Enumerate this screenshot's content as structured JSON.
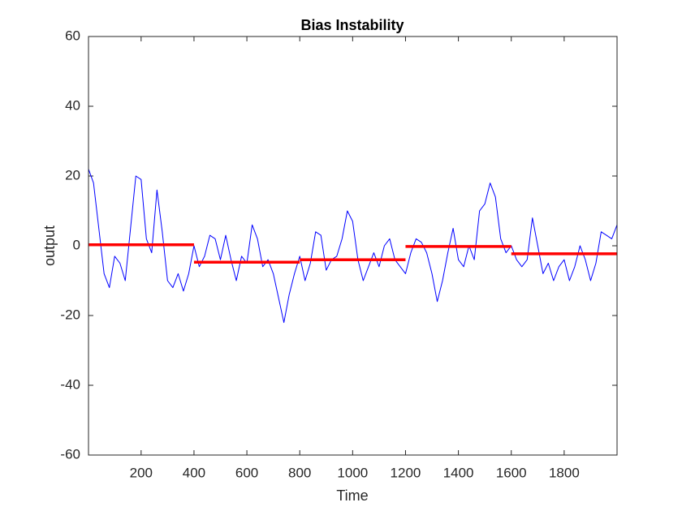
{
  "chart_data": {
    "type": "line",
    "title": "Bias Instability",
    "x_label": "Time",
    "y_label": "output",
    "xlim": [
      1,
      2000
    ],
    "ylim": [
      -60,
      60
    ],
    "xticks": [
      200,
      400,
      600,
      800,
      1000,
      1200,
      1400,
      1600,
      1800
    ],
    "yticks": [
      -60,
      -40,
      -20,
      0,
      20,
      40,
      60
    ],
    "grid": false,
    "series": [
      {
        "color": "#0000ff",
        "width": 1,
        "x": [
          1,
          20,
          40,
          60,
          80,
          100,
          120,
          140,
          160,
          180,
          200,
          220,
          240,
          260,
          280,
          300,
          320,
          340,
          360,
          380,
          400,
          420,
          440,
          460,
          480,
          500,
          520,
          540,
          560,
          580,
          600,
          620,
          640,
          660,
          680,
          700,
          720,
          740,
          760,
          780,
          800,
          820,
          840,
          860,
          880,
          900,
          920,
          940,
          960,
          980,
          1000,
          1020,
          1040,
          1060,
          1080,
          1100,
          1120,
          1140,
          1160,
          1180,
          1200,
          1220,
          1240,
          1260,
          1280,
          1300,
          1320,
          1340,
          1360,
          1380,
          1400,
          1420,
          1440,
          1460,
          1480,
          1500,
          1520,
          1540,
          1560,
          1580,
          1600,
          1620,
          1640,
          1660,
          1680,
          1700,
          1720,
          1740,
          1760,
          1780,
          1800,
          1820,
          1840,
          1860,
          1880,
          1900,
          1920,
          1940,
          1960,
          1980,
          2000
        ],
        "values": [
          22,
          18,
          5,
          -8,
          -12,
          -3,
          -5,
          -10,
          5,
          20,
          19,
          2,
          -2,
          16,
          4,
          -10,
          -12,
          -8,
          -13,
          -8,
          0,
          -6,
          -3,
          3,
          2,
          -4,
          3,
          -4,
          -10,
          -3,
          -5,
          6,
          2,
          -6,
          -4,
          -8,
          -15,
          -22,
          -14,
          -8,
          -3,
          -10,
          -5,
          4,
          3,
          -7,
          -4,
          -3,
          2,
          10,
          7,
          -4,
          -10,
          -6,
          -2,
          -6,
          0,
          2,
          -4,
          -6,
          -8,
          -2,
          2,
          1,
          -2,
          -8,
          -16,
          -10,
          -2,
          5,
          -4,
          -6,
          0,
          -4,
          10,
          12,
          18,
          14,
          2,
          -2,
          0,
          -4,
          -6,
          -4,
          8,
          0,
          -8,
          -5,
          -10,
          -6,
          -4,
          -10,
          -6,
          0,
          -4,
          -10,
          -5,
          4,
          3,
          2,
          6
        ]
      },
      {
        "color": "#ff0000",
        "width": 3.5,
        "x": [
          1,
          400
        ],
        "values": [
          0.3,
          0.3
        ]
      },
      {
        "color": "#ff0000",
        "width": 3.5,
        "x": [
          400,
          800
        ],
        "values": [
          -4.7,
          -4.7
        ]
      },
      {
        "color": "#ff0000",
        "width": 3.5,
        "x": [
          800,
          1200
        ],
        "values": [
          -4,
          -4
        ]
      },
      {
        "color": "#ff0000",
        "width": 3.5,
        "x": [
          1200,
          1600
        ],
        "values": [
          -0.2,
          -0.2
        ]
      },
      {
        "color": "#ff0000",
        "width": 3.5,
        "x": [
          1600,
          2000
        ],
        "values": [
          -2.3,
          -2.3
        ]
      }
    ]
  }
}
